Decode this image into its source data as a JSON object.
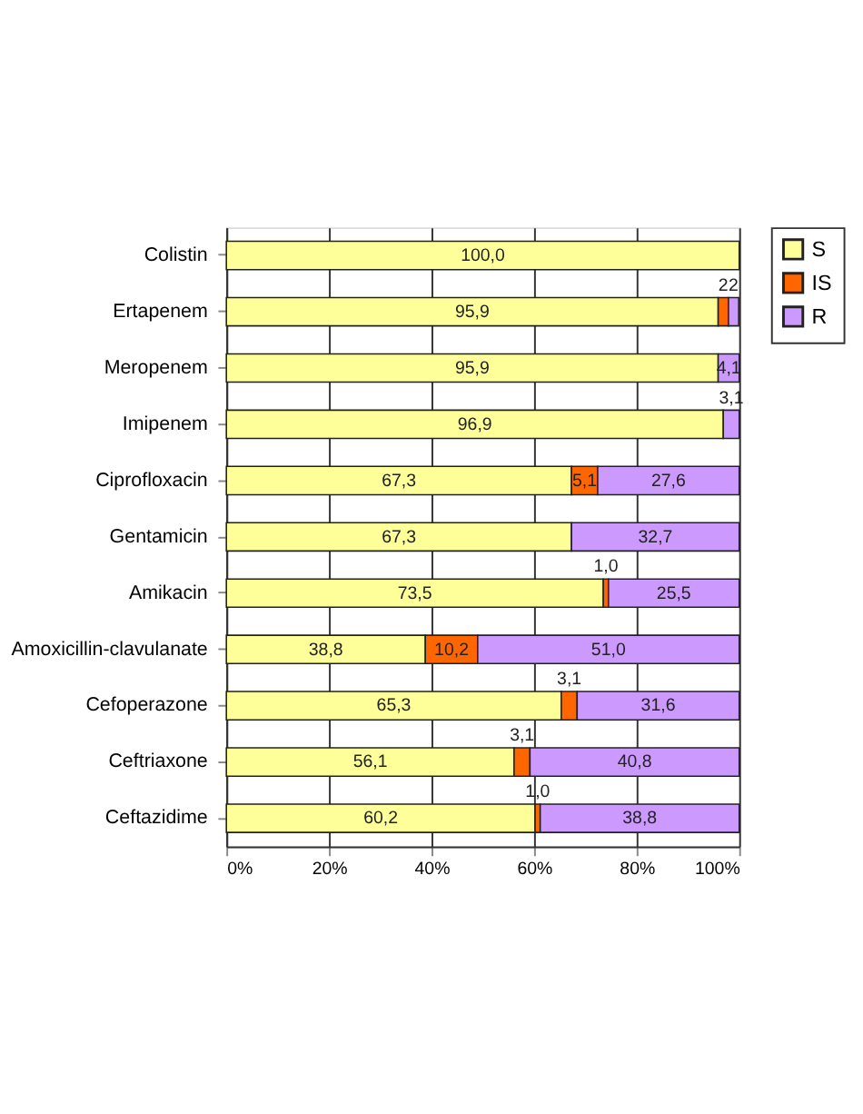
{
  "chart_data": {
    "type": "bar",
    "orientation": "horizontal",
    "stacked": true,
    "categories": [
      "Colistin",
      "Ertapenem",
      "Meropenem",
      "Imipenem",
      "Ciprofloxacin",
      "Gentamicin",
      "Amikacin",
      "Amoxicillin-clavulanate",
      "Cefoperazone",
      "Ceftriaxone",
      "Ceftazidime"
    ],
    "series": [
      {
        "name": "S",
        "color": "#ffff99",
        "values": [
          100.0,
          95.9,
          95.9,
          96.9,
          67.3,
          67.3,
          73.5,
          38.8,
          65.3,
          56.1,
          60.2
        ],
        "value_labels": [
          "100,0",
          "95,9",
          "95,9",
          "96,9",
          "67,3",
          "67,3",
          "73,5",
          "38,8",
          "65,3",
          "56,1",
          "60,2"
        ]
      },
      {
        "name": "IS",
        "color": "#ff6600",
        "values": [
          0,
          2,
          0,
          0,
          5.1,
          0,
          1.0,
          10.2,
          3.1,
          3.1,
          1.0
        ],
        "value_labels": [
          null,
          "2",
          null,
          null,
          "5,1",
          null,
          "1,0",
          "10,2",
          "3,1",
          "3,1",
          "1,0"
        ]
      },
      {
        "name": "R",
        "color": "#cc99ff",
        "values": [
          0,
          2,
          4.1,
          3.1,
          27.6,
          32.7,
          25.5,
          51.0,
          31.6,
          40.8,
          38.8
        ],
        "value_labels": [
          null,
          "2",
          "4,1",
          "3,1",
          "27,6",
          "32,7",
          "25,5",
          "51,0",
          "31,6",
          "40,8",
          "38,8"
        ]
      }
    ],
    "xlim": [
      0,
      100
    ],
    "xticks": [
      {
        "value": 0,
        "label": "0%"
      },
      {
        "value": 20,
        "label": "20%"
      },
      {
        "value": 40,
        "label": "40%"
      },
      {
        "value": 60,
        "label": "60%"
      },
      {
        "value": 80,
        "label": "80%"
      },
      {
        "value": 100,
        "label": "100%"
      }
    ],
    "grid": "x",
    "legend": "right"
  }
}
